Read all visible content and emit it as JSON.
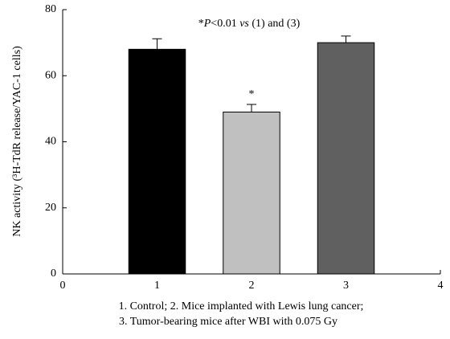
{
  "chart_data": {
    "type": "bar",
    "y_label": "NK activity (³H-TdR release/YAC-1 cells)",
    "annotation": [
      "*",
      "P",
      "<0.01 ",
      "vs",
      " (1) and (3)"
    ],
    "caption": [
      "1. Control; 2. Mice implanted with Lewis lung cancer;",
      "3. Tumor-bearing mice after WBI with 0.075 Gy"
    ],
    "x": [
      1,
      2,
      3
    ],
    "values": [
      68,
      49,
      70
    ],
    "errors": [
      3.2,
      2.3,
      2
    ],
    "marker_labels": [
      null,
      "*",
      null
    ],
    "colors": [
      "#000000",
      "#c0c0c0",
      "#606060"
    ],
    "xlim": [
      0,
      4
    ],
    "xticks": [
      0,
      1,
      2,
      3,
      4
    ],
    "ylim": [
      0,
      80
    ],
    "yticks": [
      0,
      20,
      40,
      60,
      80
    ]
  }
}
